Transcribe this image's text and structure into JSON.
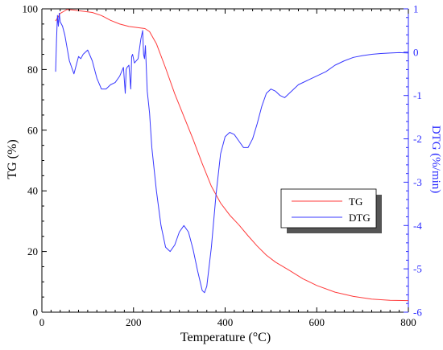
{
  "chart_data": {
    "type": "line",
    "xlabel": "Temperature (°C)",
    "ylabel_left": "TG (%)",
    "ylabel_right": "DTG (%/min)",
    "xlim": [
      0,
      800
    ],
    "ylim_left": [
      0,
      100
    ],
    "ylim_right": [
      -6,
      1
    ],
    "x_ticks": [
      0,
      200,
      400,
      600,
      800
    ],
    "y_left_ticks": [
      0,
      20,
      40,
      60,
      80,
      100
    ],
    "y_right_ticks": [
      -6,
      -5,
      -4,
      -3,
      -2,
      -1,
      0,
      1
    ],
    "grid": false,
    "legend_position": "center-right",
    "colors": {
      "TG": "#ff3b3b",
      "DTG": "#3838ff",
      "left_axis": "#000000",
      "right_axis": "#2a2aff"
    },
    "series": [
      {
        "name": "TG",
        "axis": "left",
        "x": [
          30,
          40,
          55,
          70,
          90,
          110,
          130,
          150,
          170,
          190,
          210,
          225,
          235,
          250,
          270,
          290,
          310,
          330,
          350,
          370,
          390,
          410,
          430,
          450,
          470,
          490,
          510,
          540,
          570,
          600,
          640,
          680,
          720,
          760,
          800
        ],
        "y": [
          96,
          98.5,
          99.8,
          99.6,
          99.2,
          98.8,
          97.8,
          96.2,
          95.0,
          94.2,
          93.8,
          93.5,
          92.5,
          88.5,
          80.5,
          72.0,
          64.5,
          57.0,
          49.0,
          41.5,
          36.0,
          32.0,
          28.8,
          25.2,
          21.8,
          18.8,
          16.5,
          13.8,
          11.0,
          8.8,
          6.6,
          5.2,
          4.3,
          3.9,
          3.8
        ]
      },
      {
        "name": "DTG",
        "axis": "right",
        "x": [
          30,
          32,
          34,
          36,
          38,
          40,
          45,
          50,
          55,
          60,
          65,
          70,
          75,
          80,
          85,
          90,
          95,
          100,
          110,
          120,
          130,
          140,
          150,
          160,
          170,
          178,
          182,
          184,
          186,
          190,
          194,
          196,
          198,
          202,
          210,
          216,
          220,
          222,
          224,
          226,
          230,
          235,
          240,
          250,
          260,
          270,
          280,
          290,
          300,
          310,
          320,
          330,
          340,
          350,
          355,
          360,
          370,
          380,
          390,
          400,
          410,
          420,
          430,
          440,
          450,
          460,
          470,
          480,
          490,
          500,
          510,
          520,
          530,
          540,
          550,
          560,
          580,
          600,
          620,
          640,
          660,
          680,
          700,
          720,
          740,
          760,
          780,
          800
        ],
        "y": [
          -0.45,
          0.3,
          0.85,
          0.6,
          0.9,
          0.7,
          0.6,
          0.4,
          0.1,
          -0.2,
          -0.35,
          -0.5,
          -0.3,
          -0.1,
          -0.15,
          -0.05,
          0.0,
          0.05,
          -0.2,
          -0.6,
          -0.85,
          -0.85,
          -0.75,
          -0.7,
          -0.55,
          -0.35,
          -0.95,
          -0.4,
          -0.35,
          -0.3,
          -0.85,
          -0.1,
          -0.05,
          -0.25,
          -0.15,
          0.3,
          0.5,
          -0.05,
          -0.15,
          0.15,
          -0.9,
          -1.4,
          -2.2,
          -3.2,
          -4.0,
          -4.5,
          -4.6,
          -4.45,
          -4.15,
          -4.0,
          -4.15,
          -4.55,
          -5.05,
          -5.5,
          -5.55,
          -5.4,
          -4.5,
          -3.3,
          -2.35,
          -1.95,
          -1.85,
          -1.9,
          -2.05,
          -2.2,
          -2.2,
          -2.0,
          -1.65,
          -1.25,
          -0.95,
          -0.85,
          -0.9,
          -1.0,
          -1.05,
          -0.95,
          -0.85,
          -0.75,
          -0.65,
          -0.55,
          -0.45,
          -0.3,
          -0.2,
          -0.12,
          -0.08,
          -0.05,
          -0.03,
          -0.02,
          -0.01,
          -0.02
        ]
      }
    ]
  }
}
